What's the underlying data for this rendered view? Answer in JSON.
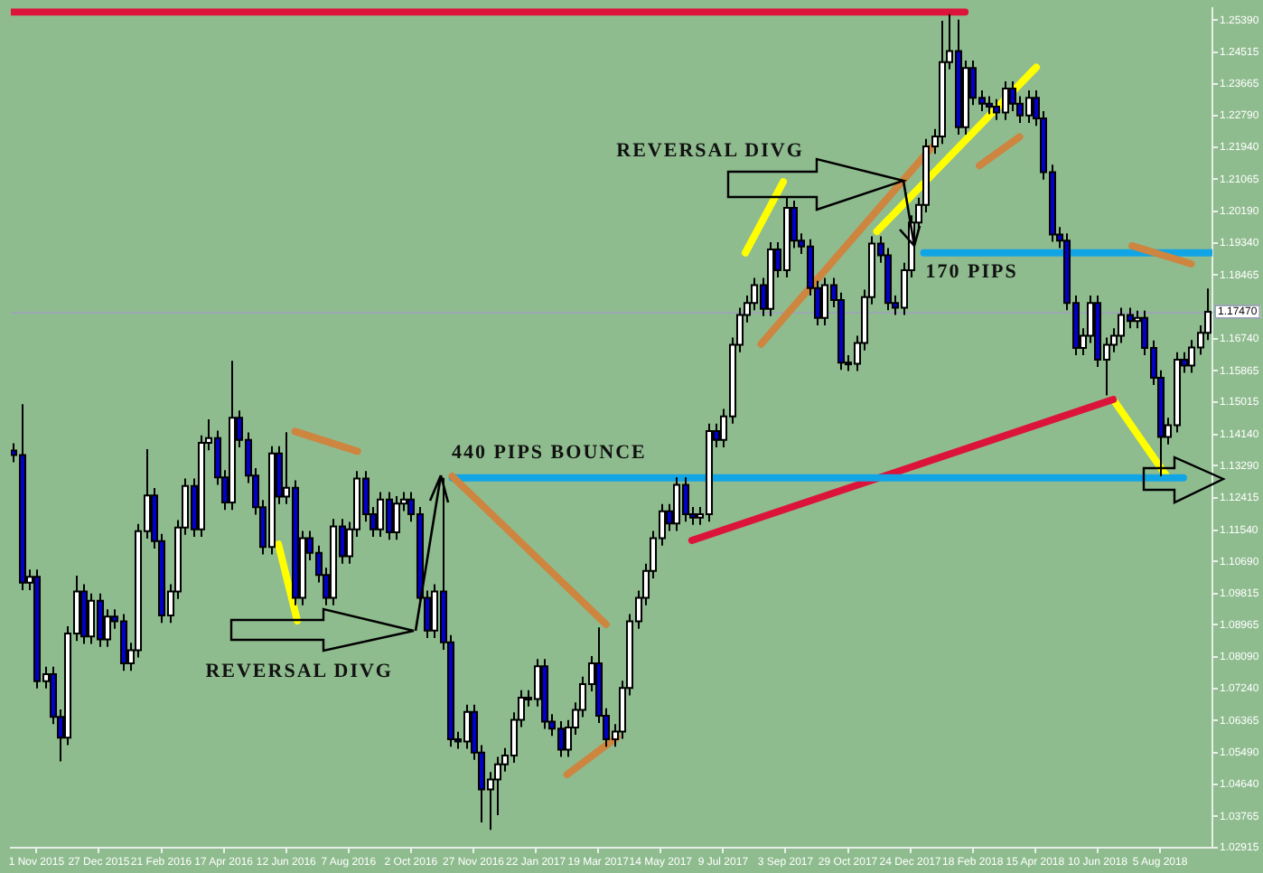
{
  "chart_data": {
    "type": "candlestick",
    "x": [
      "2015-10-11",
      "2015-10-18",
      "2015-10-25",
      "2015-11-01",
      "2015-11-08",
      "2015-11-15",
      "2015-11-22",
      "2015-11-29",
      "2015-12-06",
      "2015-12-13",
      "2015-12-20",
      "2015-12-27",
      "2016-01-03",
      "2016-01-10",
      "2016-01-17",
      "2016-01-24",
      "2016-01-31",
      "2016-02-07",
      "2016-02-14",
      "2016-02-21",
      "2016-02-28",
      "2016-03-06",
      "2016-03-13",
      "2016-03-20",
      "2016-03-27",
      "2016-04-03",
      "2016-04-10",
      "2016-04-17",
      "2016-04-24",
      "2016-05-01",
      "2016-05-08",
      "2016-05-15",
      "2016-05-22",
      "2016-05-29",
      "2016-06-05",
      "2016-06-12",
      "2016-06-19",
      "2016-06-26",
      "2016-07-03",
      "2016-07-10",
      "2016-07-17",
      "2016-07-24",
      "2016-07-31",
      "2016-08-07",
      "2016-08-14",
      "2016-08-21",
      "2016-08-28",
      "2016-09-04",
      "2016-09-11",
      "2016-09-18",
      "2016-09-25",
      "2016-10-02",
      "2016-10-09",
      "2016-10-16",
      "2016-10-23",
      "2016-10-30",
      "2016-11-06",
      "2016-11-13",
      "2016-11-20",
      "2016-11-27",
      "2016-12-04",
      "2016-12-11",
      "2016-12-18",
      "2016-12-25",
      "2017-01-01",
      "2017-01-08",
      "2017-01-15",
      "2017-01-22",
      "2017-01-29",
      "2017-02-05",
      "2017-02-12",
      "2017-02-19",
      "2017-02-26",
      "2017-03-05",
      "2017-03-12",
      "2017-03-19",
      "2017-03-26",
      "2017-04-02",
      "2017-04-09",
      "2017-04-16",
      "2017-04-23",
      "2017-04-30",
      "2017-05-07",
      "2017-05-14",
      "2017-05-21",
      "2017-05-28",
      "2017-06-04",
      "2017-06-11",
      "2017-06-18",
      "2017-06-25",
      "2017-07-02",
      "2017-07-09",
      "2017-07-16",
      "2017-07-23",
      "2017-07-30",
      "2017-08-06",
      "2017-08-13",
      "2017-08-20",
      "2017-08-27",
      "2017-09-03",
      "2017-09-10",
      "2017-09-17",
      "2017-09-24",
      "2017-10-01",
      "2017-10-08",
      "2017-10-15",
      "2017-10-22",
      "2017-10-29",
      "2017-11-05",
      "2017-11-12",
      "2017-11-19",
      "2017-11-26",
      "2017-12-03",
      "2017-12-10",
      "2017-12-17",
      "2017-12-24",
      "2017-12-31",
      "2018-01-07",
      "2018-01-14",
      "2018-01-21",
      "2018-01-28",
      "2018-02-04",
      "2018-02-11",
      "2018-02-18",
      "2018-02-25",
      "2018-03-04",
      "2018-03-11",
      "2018-03-18",
      "2018-03-25",
      "2018-04-01",
      "2018-04-08",
      "2018-04-15",
      "2018-04-22",
      "2018-04-29",
      "2018-05-06",
      "2018-05-13",
      "2018-05-20",
      "2018-05-27",
      "2018-06-03",
      "2018-06-10",
      "2018-06-17",
      "2018-06-24",
      "2018-07-01",
      "2018-07-08",
      "2018-07-15",
      "2018-07-22",
      "2018-07-29",
      "2018-08-05",
      "2018-08-12",
      "2018-08-19",
      "2018-08-26",
      "2018-09-02",
      "2018-09-09",
      "2018-09-16"
    ],
    "ohlc": [
      [
        1.137,
        1.139,
        1.1338,
        1.1358
      ],
      [
        1.1358,
        1.1496,
        1.0991,
        1.1011
      ],
      [
        1.1011,
        1.1047,
        1.0991,
        1.1027
      ],
      [
        1.1027,
        1.1047,
        1.0724,
        1.0744
      ],
      [
        1.0744,
        1.0783,
        1.0724,
        1.0763
      ],
      [
        1.0763,
        1.0783,
        1.0627,
        1.0647
      ],
      [
        1.0647,
        1.0667,
        1.0526,
        1.059
      ],
      [
        1.059,
        1.0893,
        1.057,
        1.0873
      ],
      [
        1.0873,
        1.103,
        1.0853,
        1.0987
      ],
      [
        1.0987,
        1.1007,
        1.0845,
        1.0865
      ],
      [
        1.0865,
        1.0982,
        1.0845,
        1.0962
      ],
      [
        1.0962,
        1.0982,
        1.0837,
        1.0857
      ],
      [
        1.0857,
        1.0939,
        1.0837,
        1.0919
      ],
      [
        1.0919,
        1.0939,
        1.0886,
        1.0906
      ],
      [
        1.0906,
        1.0926,
        1.0772,
        1.0792
      ],
      [
        1.0792,
        1.0848,
        1.0772,
        1.0828
      ],
      [
        1.0828,
        1.1171,
        1.0808,
        1.1151
      ],
      [
        1.1151,
        1.1374,
        1.1131,
        1.1248
      ],
      [
        1.1248,
        1.1268,
        1.1104,
        1.1124
      ],
      [
        1.1124,
        1.1144,
        1.0902,
        1.0922
      ],
      [
        1.0922,
        1.1007,
        1.0902,
        1.0987
      ],
      [
        1.0987,
        1.1181,
        1.0967,
        1.1161
      ],
      [
        1.1161,
        1.1294,
        1.1141,
        1.1274
      ],
      [
        1.1274,
        1.1294,
        1.1136,
        1.1156
      ],
      [
        1.1156,
        1.1411,
        1.1136,
        1.1391
      ],
      [
        1.1391,
        1.1455,
        1.1371,
        1.1404
      ],
      [
        1.1404,
        1.1424,
        1.1277,
        1.1297
      ],
      [
        1.1297,
        1.1317,
        1.1209,
        1.1229
      ],
      [
        1.1229,
        1.1614,
        1.1209,
        1.1459
      ],
      [
        1.1459,
        1.1479,
        1.1379,
        1.1399
      ],
      [
        1.1399,
        1.1419,
        1.1282,
        1.1302
      ],
      [
        1.1302,
        1.1322,
        1.1196,
        1.1216
      ],
      [
        1.1216,
        1.1236,
        1.1088,
        1.1108
      ],
      [
        1.1108,
        1.1382,
        1.1088,
        1.1362
      ],
      [
        1.1362,
        1.1382,
        1.1225,
        1.1245
      ],
      [
        1.1245,
        1.142,
        1.1225,
        1.1269
      ],
      [
        1.1269,
        1.1289,
        1.095,
        1.097
      ],
      [
        1.097,
        1.1152,
        1.095,
        1.1132
      ],
      [
        1.1132,
        1.1152,
        1.1072,
        1.1092
      ],
      [
        1.1092,
        1.1112,
        1.1012,
        1.1032
      ],
      [
        1.1032,
        1.1052,
        1.095,
        1.097
      ],
      [
        1.097,
        1.1184,
        1.095,
        1.1164
      ],
      [
        1.1164,
        1.1184,
        1.1063,
        1.1083
      ],
      [
        1.1083,
        1.1176,
        1.1063,
        1.1156
      ],
      [
        1.1156,
        1.1314,
        1.1136,
        1.1294
      ],
      [
        1.1294,
        1.1314,
        1.1177,
        1.1197
      ],
      [
        1.1197,
        1.1217,
        1.1136,
        1.1156
      ],
      [
        1.1156,
        1.1257,
        1.1136,
        1.1237
      ],
      [
        1.1237,
        1.1257,
        1.1128,
        1.1148
      ],
      [
        1.1148,
        1.1246,
        1.1128,
        1.1226
      ],
      [
        1.1226,
        1.1257,
        1.1206,
        1.1237
      ],
      [
        1.1237,
        1.1257,
        1.1177,
        1.1197
      ],
      [
        1.1197,
        1.1217,
        1.095,
        1.097
      ],
      [
        1.097,
        1.099,
        1.0861,
        1.0881
      ],
      [
        1.0881,
        1.1007,
        1.0861,
        1.0987
      ],
      [
        1.0987,
        1.1296,
        1.0829,
        1.0849
      ],
      [
        1.0849,
        1.0869,
        1.0566,
        1.0586
      ],
      [
        1.0586,
        1.0606,
        1.056,
        1.058
      ],
      [
        1.058,
        1.068,
        1.056,
        1.066
      ],
      [
        1.066,
        1.068,
        1.053,
        1.055
      ],
      [
        1.055,
        1.057,
        1.036,
        1.045
      ],
      [
        1.045,
        1.0497,
        1.034,
        1.0477
      ],
      [
        1.0477,
        1.0538,
        1.038,
        1.0518
      ],
      [
        1.0518,
        1.0562,
        1.0498,
        1.0542
      ],
      [
        1.0542,
        1.0659,
        1.0522,
        1.0639
      ],
      [
        1.0639,
        1.0719,
        1.0619,
        1.0699
      ],
      [
        1.0699,
        1.0719,
        1.0675,
        1.0695
      ],
      [
        1.0695,
        1.0804,
        1.0675,
        1.0784
      ],
      [
        1.0784,
        1.0804,
        1.0614,
        1.0634
      ],
      [
        1.0634,
        1.0654,
        1.0595,
        1.0615
      ],
      [
        1.0615,
        1.0635,
        1.0538,
        1.0558
      ],
      [
        1.0558,
        1.0638,
        1.0538,
        1.0618
      ],
      [
        1.0618,
        1.0686,
        1.0598,
        1.0666
      ],
      [
        1.0666,
        1.0756,
        1.0646,
        1.0736
      ],
      [
        1.0736,
        1.0812,
        1.0716,
        1.0792
      ],
      [
        1.0792,
        1.089,
        1.063,
        1.065
      ],
      [
        1.065,
        1.067,
        1.0566,
        1.0586
      ],
      [
        1.0586,
        1.0627,
        1.0566,
        1.0607
      ],
      [
        1.0607,
        1.0745,
        1.0587,
        1.0725
      ],
      [
        1.0725,
        1.0926,
        1.0705,
        1.0906
      ],
      [
        1.0906,
        1.099,
        1.0886,
        1.097
      ],
      [
        1.097,
        1.1063,
        1.095,
        1.1043
      ],
      [
        1.1043,
        1.1152,
        1.1023,
        1.1132
      ],
      [
        1.1132,
        1.1225,
        1.1112,
        1.1205
      ],
      [
        1.1205,
        1.1225,
        1.1152,
        1.1172
      ],
      [
        1.1172,
        1.1297,
        1.1152,
        1.1277
      ],
      [
        1.1277,
        1.1297,
        1.1177,
        1.1197
      ],
      [
        1.1197,
        1.1217,
        1.1168,
        1.1188
      ],
      [
        1.1188,
        1.1217,
        1.1168,
        1.1197
      ],
      [
        1.1197,
        1.1443,
        1.1177,
        1.1423
      ],
      [
        1.1423,
        1.1443,
        1.1379,
        1.1399
      ],
      [
        1.1399,
        1.1483,
        1.1379,
        1.1463
      ],
      [
        1.1463,
        1.1677,
        1.1443,
        1.1657
      ],
      [
        1.1657,
        1.1758,
        1.1637,
        1.1738
      ],
      [
        1.1738,
        1.1791,
        1.1718,
        1.1771
      ],
      [
        1.1771,
        1.1839,
        1.1751,
        1.1819
      ],
      [
        1.1819,
        1.1839,
        1.1735,
        1.1755
      ],
      [
        1.1755,
        1.1936,
        1.1735,
        1.1916
      ],
      [
        1.1916,
        1.1936,
        1.184,
        1.186
      ],
      [
        1.186,
        1.206,
        1.184,
        1.2029
      ],
      [
        1.2029,
        1.2049,
        1.192,
        1.194
      ],
      [
        1.194,
        1.196,
        1.1904,
        1.1924
      ],
      [
        1.1924,
        1.1944,
        1.1791,
        1.1811
      ],
      [
        1.1811,
        1.1831,
        1.171,
        1.173
      ],
      [
        1.173,
        1.1839,
        1.171,
        1.1819
      ],
      [
        1.1819,
        1.1839,
        1.1759,
        1.1779
      ],
      [
        1.1779,
        1.1799,
        1.1589,
        1.1609
      ],
      [
        1.1609,
        1.1629,
        1.1586,
        1.1606
      ],
      [
        1.1606,
        1.1682,
        1.1586,
        1.1662
      ],
      [
        1.1662,
        1.1807,
        1.1642,
        1.1787
      ],
      [
        1.1787,
        1.1952,
        1.1767,
        1.1932
      ],
      [
        1.1932,
        1.1952,
        1.188,
        1.19
      ],
      [
        1.19,
        1.192,
        1.1751,
        1.1771
      ],
      [
        1.1771,
        1.1791,
        1.1738,
        1.1758
      ],
      [
        1.1758,
        1.188,
        1.1738,
        1.186
      ],
      [
        1.186,
        1.2009,
        1.184,
        1.1989
      ],
      [
        1.1989,
        1.2057,
        1.1969,
        1.2037
      ],
      [
        1.2037,
        1.2216,
        1.2017,
        1.2196
      ],
      [
        1.2196,
        1.2243,
        1.2176,
        1.2223
      ],
      [
        1.2223,
        1.2537,
        1.2203,
        1.2425
      ],
      [
        1.2425,
        1.2555,
        1.2405,
        1.2455
      ],
      [
        1.2455,
        1.254,
        1.2228,
        1.2248
      ],
      [
        1.2248,
        1.2429,
        1.2228,
        1.2409
      ],
      [
        1.2409,
        1.2429,
        1.2308,
        1.2328
      ],
      [
        1.2328,
        1.2348,
        1.2292,
        1.2312
      ],
      [
        1.2312,
        1.2332,
        1.2284,
        1.2304
      ],
      [
        1.2304,
        1.2324,
        1.2268,
        1.2288
      ],
      [
        1.2288,
        1.2373,
        1.2268,
        1.2353
      ],
      [
        1.2353,
        1.2373,
        1.2292,
        1.2312
      ],
      [
        1.2312,
        1.2332,
        1.226,
        1.228
      ],
      [
        1.228,
        1.2348,
        1.226,
        1.2328
      ],
      [
        1.2328,
        1.2348,
        1.2252,
        1.2272
      ],
      [
        1.2272,
        1.2292,
        1.2106,
        1.2126
      ],
      [
        1.2126,
        1.2146,
        1.1937,
        1.1957
      ],
      [
        1.1957,
        1.1977,
        1.192,
        1.194
      ],
      [
        1.194,
        1.196,
        1.1751,
        1.1771
      ],
      [
        1.1771,
        1.1791,
        1.1629,
        1.1649
      ],
      [
        1.1649,
        1.1702,
        1.1629,
        1.1682
      ],
      [
        1.1682,
        1.1791,
        1.1662,
        1.1771
      ],
      [
        1.1771,
        1.1791,
        1.1597,
        1.1617
      ],
      [
        1.1617,
        1.1677,
        1.152,
        1.1657
      ],
      [
        1.1657,
        1.1702,
        1.1637,
        1.1682
      ],
      [
        1.1682,
        1.1758,
        1.1662,
        1.1738
      ],
      [
        1.1738,
        1.1758,
        1.1702,
        1.1722
      ],
      [
        1.1722,
        1.175,
        1.1702,
        1.173
      ],
      [
        1.173,
        1.175,
        1.1629,
        1.1649
      ],
      [
        1.1649,
        1.1669,
        1.1548,
        1.1568
      ],
      [
        1.1568,
        1.1588,
        1.13,
        1.1407
      ],
      [
        1.1407,
        1.1459,
        1.1387,
        1.1439
      ],
      [
        1.1439,
        1.1637,
        1.1419,
        1.1617
      ],
      [
        1.1617,
        1.1637,
        1.1581,
        1.1601
      ],
      [
        1.1601,
        1.167,
        1.1581,
        1.165
      ],
      [
        1.165,
        1.171,
        1.163,
        1.169
      ],
      [
        1.169,
        1.181,
        1.167,
        1.1747
      ]
    ],
    "colors": [
      "#0000c8",
      "#0000c8",
      "#ffffff",
      "#0000c8",
      "#ffffff",
      "#0000c8",
      "#0000c8",
      "#ffffff",
      "#ffffff",
      "#0000c8",
      "#ffffff",
      "#0000c8",
      "#ffffff",
      "#0000c8",
      "#0000c8",
      "#ffffff",
      "#ffffff",
      "#ffffff",
      "#0000c8",
      "#0000c8",
      "#ffffff",
      "#ffffff",
      "#ffffff",
      "#0000c8",
      "#ffffff",
      "#ffffff",
      "#0000c8",
      "#0000c8",
      "#ffffff",
      "#0000c8",
      "#0000c8",
      "#0000c8",
      "#0000c8",
      "#ffffff",
      "#0000c8",
      "#ffffff",
      "#0000c8",
      "#ffffff",
      "#0000c8",
      "#0000c8",
      "#0000c8",
      "#ffffff",
      "#0000c8",
      "#ffffff",
      "#ffffff",
      "#0000c8",
      "#0000c8",
      "#ffffff",
      "#0000c8",
      "#ffffff",
      "#ffffff",
      "#0000c8",
      "#0000c8",
      "#0000c8",
      "#ffffff",
      "#0000c8",
      "#0000c8",
      "#0000c8",
      "#ffffff",
      "#0000c8",
      "#0000c8",
      "#ffffff",
      "#ffffff",
      "#ffffff",
      "#ffffff",
      "#ffffff",
      "#0000c8",
      "#ffffff",
      "#0000c8",
      "#0000c8",
      "#0000c8",
      "#ffffff",
      "#ffffff",
      "#ffffff",
      "#ffffff",
      "#0000c8",
      "#0000c8",
      "#ffffff",
      "#ffffff",
      "#ffffff",
      "#ffffff",
      "#ffffff",
      "#ffffff",
      "#ffffff",
      "#0000c8",
      "#ffffff",
      "#0000c8",
      "#0000c8",
      "#ffffff",
      "#ffffff",
      "#0000c8",
      "#ffffff",
      "#ffffff",
      "#ffffff",
      "#ffffff",
      "#ffffff",
      "#0000c8",
      "#ffffff",
      "#0000c8",
      "#ffffff",
      "#0000c8",
      "#0000c8",
      "#0000c8",
      "#0000c8",
      "#ffffff",
      "#0000c8",
      "#0000c8",
      "#0000c8",
      "#ffffff",
      "#ffffff",
      "#ffffff",
      "#0000c8",
      "#0000c8",
      "#0000c8",
      "#ffffff",
      "#ffffff",
      "#ffffff",
      "#ffffff",
      "#ffffff",
      "#ffffff",
      "#ffffff",
      "#0000c8",
      "#ffffff",
      "#0000c8",
      "#0000c8",
      "#0000c8",
      "#0000c8",
      "#ffffff",
      "#0000c8",
      "#0000c8",
      "#ffffff",
      "#0000c8",
      "#0000c8",
      "#0000c8",
      "#0000c8",
      "#0000c8",
      "#0000c8",
      "#ffffff",
      "#ffffff",
      "#0000c8",
      "#ffffff",
      "#ffffff",
      "#ffffff",
      "#0000c8",
      "#ffffff",
      "#0000c8",
      "#0000c8",
      "#0000c8",
      "#ffffff",
      "#ffffff",
      "#0000c8",
      "#ffffff",
      "#ffffff",
      "#ffffff"
    ],
    "series": [
      {
        "type": "line",
        "color": "#dc143c",
        "x": [
          "2015-10-09",
          "2018-02-11"
        ],
        "values": [
          1.2561,
          1.2561
        ]
      },
      {
        "type": "line",
        "color": "#ffff00",
        "x": [
          "2016-06-05",
          "2016-06-22"
        ],
        "values": [
          1.1116,
          1.0908
        ]
      },
      {
        "type": "line",
        "color": "#cd853f",
        "x": [
          "2016-06-20",
          "2016-08-15"
        ],
        "values": [
          1.1422,
          1.1368
        ]
      },
      {
        "type": "line",
        "color": "#cd853f",
        "x": [
          "2016-11-08",
          "2017-03-26"
        ],
        "values": [
          1.13,
          1.0898
        ]
      },
      {
        "type": "line",
        "color": "#12a5e6",
        "x": [
          "2016-11-08",
          "2018-08-26"
        ],
        "values": [
          1.1296,
          1.1296
        ]
      },
      {
        "type": "line",
        "color": "#cd853f",
        "x": [
          "2017-02-19",
          "2017-04-05"
        ],
        "values": [
          1.049,
          1.0592
        ]
      },
      {
        "type": "line",
        "color": "#dc143c",
        "x": [
          "2017-06-11",
          "2018-06-24"
        ],
        "values": [
          1.1126,
          1.1509
        ]
      },
      {
        "type": "line",
        "color": "#ffff00",
        "x": [
          "2018-06-24",
          "2018-08-11"
        ],
        "values": [
          1.1509,
          1.13
        ]
      },
      {
        "type": "line",
        "color": "#cd853f",
        "x": [
          "2018-07-11",
          "2018-09-02"
        ],
        "values": [
          1.1926,
          1.1877
        ]
      },
      {
        "type": "line",
        "color": "#cd853f",
        "x": [
          "2017-08-12",
          "2018-01-12"
        ],
        "values": [
          1.1659,
          1.2193
        ]
      },
      {
        "type": "line",
        "color": "#ffff00",
        "x": [
          "2017-07-29",
          "2017-09-01"
        ],
        "values": [
          1.1907,
          1.21
        ]
      },
      {
        "type": "line",
        "color": "#ffff00",
        "x": [
          "2017-11-24",
          "2018-04-16"
        ],
        "values": [
          1.1965,
          1.2411
        ]
      },
      {
        "type": "line",
        "color": "#cd853f",
        "x": [
          "2018-02-24",
          "2018-04-01"
        ],
        "values": [
          1.2144,
          1.2222
        ]
      },
      {
        "type": "line",
        "color": "#12a5e6",
        "x": [
          "2018-01-05",
          "2018-09-21"
        ],
        "values": [
          1.1907,
          1.1907
        ]
      }
    ],
    "annotations": [
      "REVERSAL DIVG",
      "440 PIPS BOUNCE",
      "REVERSAL DIVG",
      {
        "text": "170 PIPS",
        "x": "2018-01-05",
        "y": 1.1907
      }
    ],
    "ref_lines": [
      {
        "axis": "y",
        "value": 1.1747,
        "label": "1.17470",
        "color": "#9aa6b2"
      }
    ],
    "xlim": [
      "2015-10-09",
      "2018-09-21"
    ],
    "xticks": [
      {
        "value": "2015-11-01",
        "label": "1 Nov 2015"
      },
      {
        "value": "2015-12-27",
        "label": "27 Dec 2015"
      },
      {
        "value": "2016-02-21",
        "label": "21 Feb 2016"
      },
      {
        "value": "2016-04-17",
        "label": "17 Apr 2016"
      },
      {
        "value": "2016-06-12",
        "label": "12 Jun 2016"
      },
      {
        "value": "2016-08-07",
        "label": "7 Aug 2016"
      },
      {
        "value": "2016-10-02",
        "label": "2 Oct 2016"
      },
      {
        "value": "2016-11-27",
        "label": "27 Nov 2016"
      },
      {
        "value": "2017-01-22",
        "label": "22 Jan 2017"
      },
      {
        "value": "2017-03-19",
        "label": "19 Mar 2017"
      },
      {
        "value": "2017-05-14",
        "label": "14 May 2017"
      },
      {
        "value": "2017-07-09",
        "label": "9 Jul 2017"
      },
      {
        "value": "2017-09-03",
        "label": "3 Sep 2017"
      },
      {
        "value": "2017-10-29",
        "label": "29 Oct 2017"
      },
      {
        "value": "2017-12-24",
        "label": "24 Dec 2017"
      },
      {
        "value": "2018-02-18",
        "label": "18 Feb 2018"
      },
      {
        "value": "2018-04-15",
        "label": "15 Apr 2018"
      },
      {
        "value": "2018-06-10",
        "label": "10 Jun 2018"
      },
      {
        "value": "2018-08-05",
        "label": "5 Aug 2018"
      }
    ],
    "ylim": [
      1.02915,
      1.2571
    ],
    "yticks": [
      {
        "value": 1.2539,
        "label": "1.25390"
      },
      {
        "value": 1.24515,
        "label": "1.24515"
      },
      {
        "value": 1.23665,
        "label": "1.23665"
      },
      {
        "value": 1.2279,
        "label": "1.22790"
      },
      {
        "value": 1.2194,
        "label": "1.21940"
      },
      {
        "value": 1.21065,
        "label": "1.21065"
      },
      {
        "value": 1.2019,
        "label": "1.20190"
      },
      {
        "value": 1.1934,
        "label": "1.19340"
      },
      {
        "value": 1.18465,
        "label": "1.18465"
      },
      {
        "value": 1.1674,
        "label": "1.16740"
      },
      {
        "value": 1.15865,
        "label": "1.15865"
      },
      {
        "value": 1.15015,
        "label": "1.15015"
      },
      {
        "value": 1.1414,
        "label": "1.14140"
      },
      {
        "value": 1.1329,
        "label": "1.13290"
      },
      {
        "value": 1.12415,
        "label": "1.12415"
      },
      {
        "value": 1.1154,
        "label": "1.11540"
      },
      {
        "value": 1.1069,
        "label": "1.10690"
      },
      {
        "value": 1.09815,
        "label": "1.09815"
      },
      {
        "value": 1.08965,
        "label": "1.08965"
      },
      {
        "value": 1.0809,
        "label": "1.08090"
      },
      {
        "value": 1.0724,
        "label": "1.07240"
      },
      {
        "value": 1.06365,
        "label": "1.06365"
      },
      {
        "value": 1.0549,
        "label": "1.05490"
      },
      {
        "value": 1.0464,
        "label": "1.04640"
      },
      {
        "value": 1.03765,
        "label": "1.03765"
      },
      {
        "value": 1.02915,
        "label": "1.02915"
      }
    ],
    "grid": false,
    "legend": false
  }
}
